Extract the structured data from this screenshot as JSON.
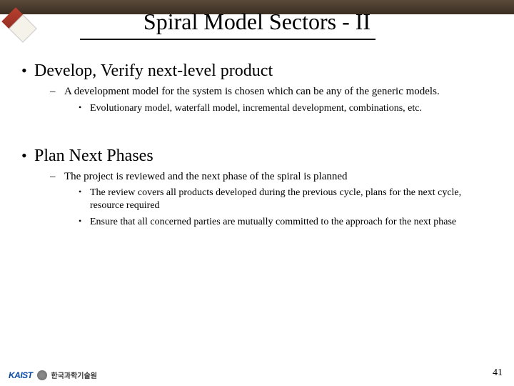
{
  "title": "Spiral Model Sectors - II",
  "sections": [
    {
      "heading": "Develop, Verify next-level product",
      "sub": [
        {
          "text": "A development model for the system is chosen which can be any of the generic models.",
          "sub": [
            {
              "text": "Evolutionary model, waterfall model, incremental development, combinations, etc."
            }
          ]
        }
      ]
    },
    {
      "heading": "Plan Next Phases",
      "sub": [
        {
          "text": "The project is reviewed and the next phase of the spiral is planned",
          "sub": [
            {
              "text": "The review covers all products developed during the previous cycle, plans for the next cycle, resource required"
            },
            {
              "text": "Ensure that all concerned parties are mutually committed to the approach for the next phase"
            }
          ]
        }
      ]
    }
  ],
  "footer": {
    "logo_text": "KAIST",
    "logo_kr": "한국과학기술원"
  },
  "page_number": "41"
}
